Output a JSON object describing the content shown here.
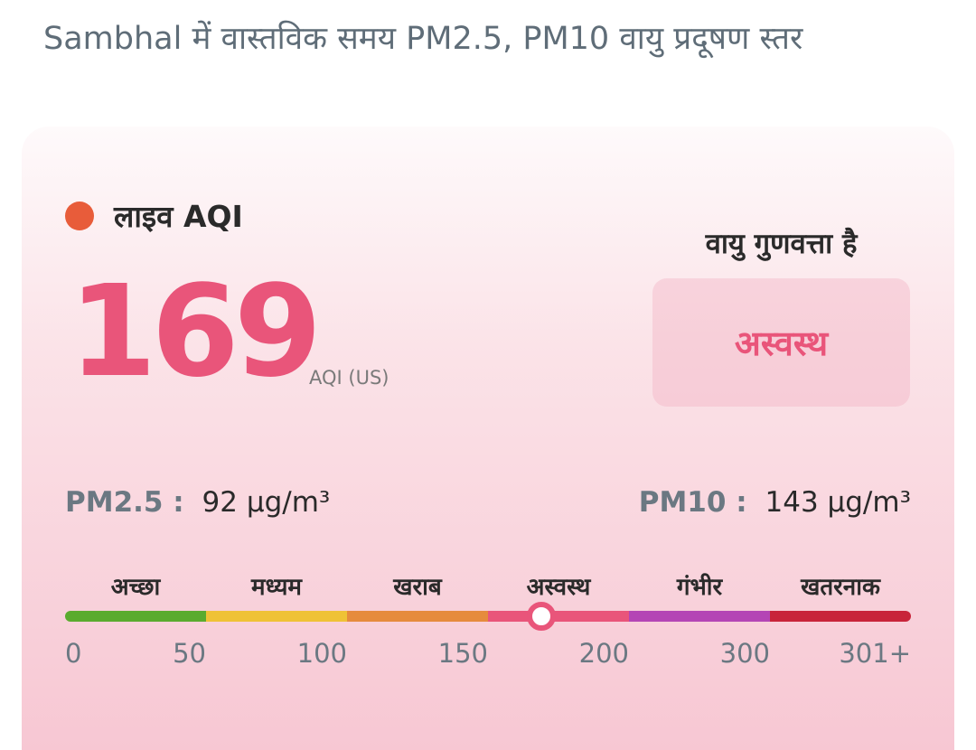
{
  "page_title": "Sambhal में वास्तविक समय PM2.5, PM10 वायु प्रदूषण स्तर",
  "live_label": "लाइव AQI",
  "aqi": {
    "value": "169",
    "unit": "AQI (US)"
  },
  "quality": {
    "heading": "वायु गुणवत्ता है",
    "status": "अस्वस्थ",
    "status_color": "#e9557a"
  },
  "pm25": {
    "label": "PM2.5 :",
    "value": "92 µg/m³"
  },
  "pm10": {
    "label": "PM10 :",
    "value": "143 µg/m³"
  },
  "scale": {
    "categories": [
      {
        "label": "अच्छा",
        "color": "#5aab2e"
      },
      {
        "label": "मध्यम",
        "color": "#efc236"
      },
      {
        "label": "खराब",
        "color": "#e68b3d"
      },
      {
        "label": "अस्वस्थ",
        "color": "#e9557a"
      },
      {
        "label": "गंभीर",
        "color": "#b445b5"
      },
      {
        "label": "खतरनाक",
        "color": "#c8243a"
      }
    ],
    "ticks": [
      "0",
      "50",
      "100",
      "150",
      "200",
      "300",
      "301+"
    ],
    "indicator_value": 169
  },
  "live_dot_color": "#e85c3a"
}
